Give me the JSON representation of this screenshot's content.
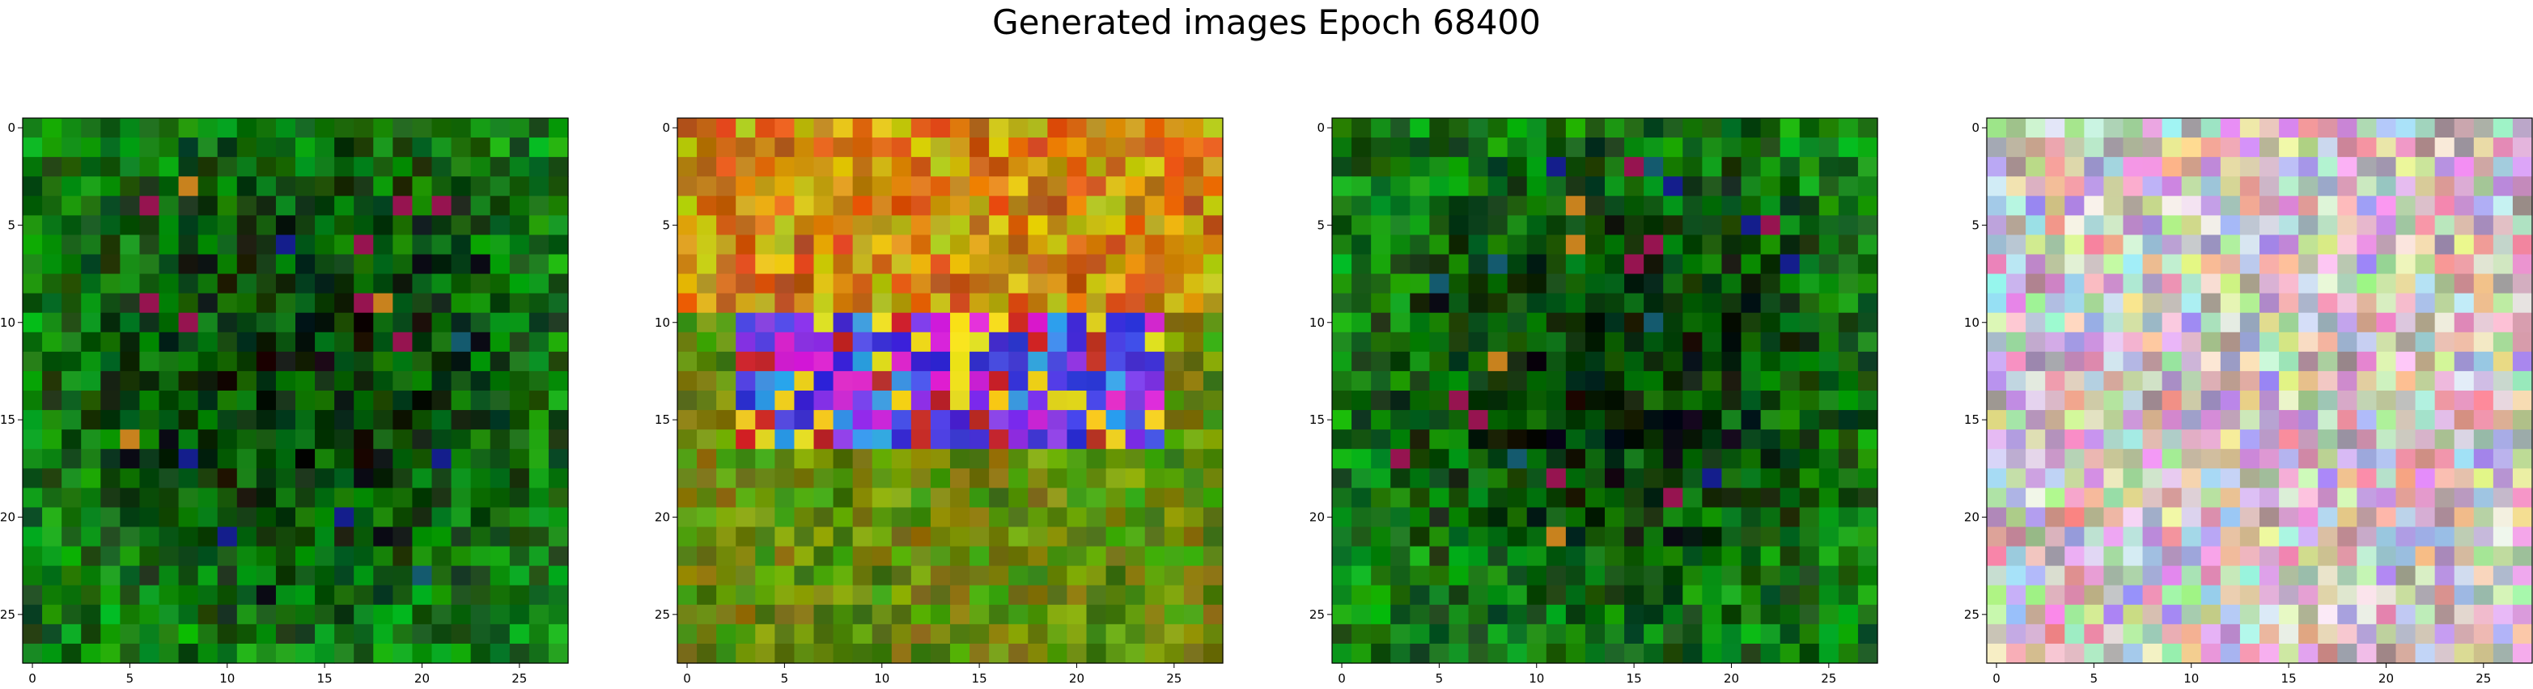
{
  "figure": {
    "title": "Generated images Epoch 68400"
  },
  "chart_data": [
    {
      "type": "heatmap",
      "grid_size": 28,
      "palette": "green",
      "seed": 11,
      "xticks": [
        0,
        5,
        10,
        15,
        20,
        25
      ],
      "yticks": [
        0,
        5,
        10,
        15,
        20,
        25
      ],
      "xlim": [
        -0.5,
        27.5
      ],
      "ylim": [
        27.5,
        -0.5
      ]
    },
    {
      "type": "heatmap",
      "grid_size": 28,
      "palette": "warm",
      "seed": 23,
      "xticks": [
        0,
        5,
        10,
        15,
        20,
        25
      ],
      "yticks": [
        0,
        5,
        10,
        15,
        20,
        25
      ],
      "xlim": [
        -0.5,
        27.5
      ],
      "ylim": [
        27.5,
        -0.5
      ]
    },
    {
      "type": "heatmap",
      "grid_size": 28,
      "palette": "green",
      "seed": 37,
      "xticks": [
        0,
        5,
        10,
        15,
        20,
        25
      ],
      "yticks": [
        0,
        5,
        10,
        15,
        20,
        25
      ],
      "xlim": [
        -0.5,
        27.5
      ],
      "ylim": [
        27.5,
        -0.5
      ]
    },
    {
      "type": "heatmap",
      "grid_size": 28,
      "palette": "pastel",
      "seed": 53,
      "xticks": [
        0,
        5,
        10,
        15,
        20,
        25
      ],
      "yticks": [
        0,
        5,
        10,
        15,
        20,
        25
      ],
      "xlim": [
        -0.5,
        27.5
      ],
      "ylim": [
        27.5,
        -0.5
      ]
    }
  ]
}
